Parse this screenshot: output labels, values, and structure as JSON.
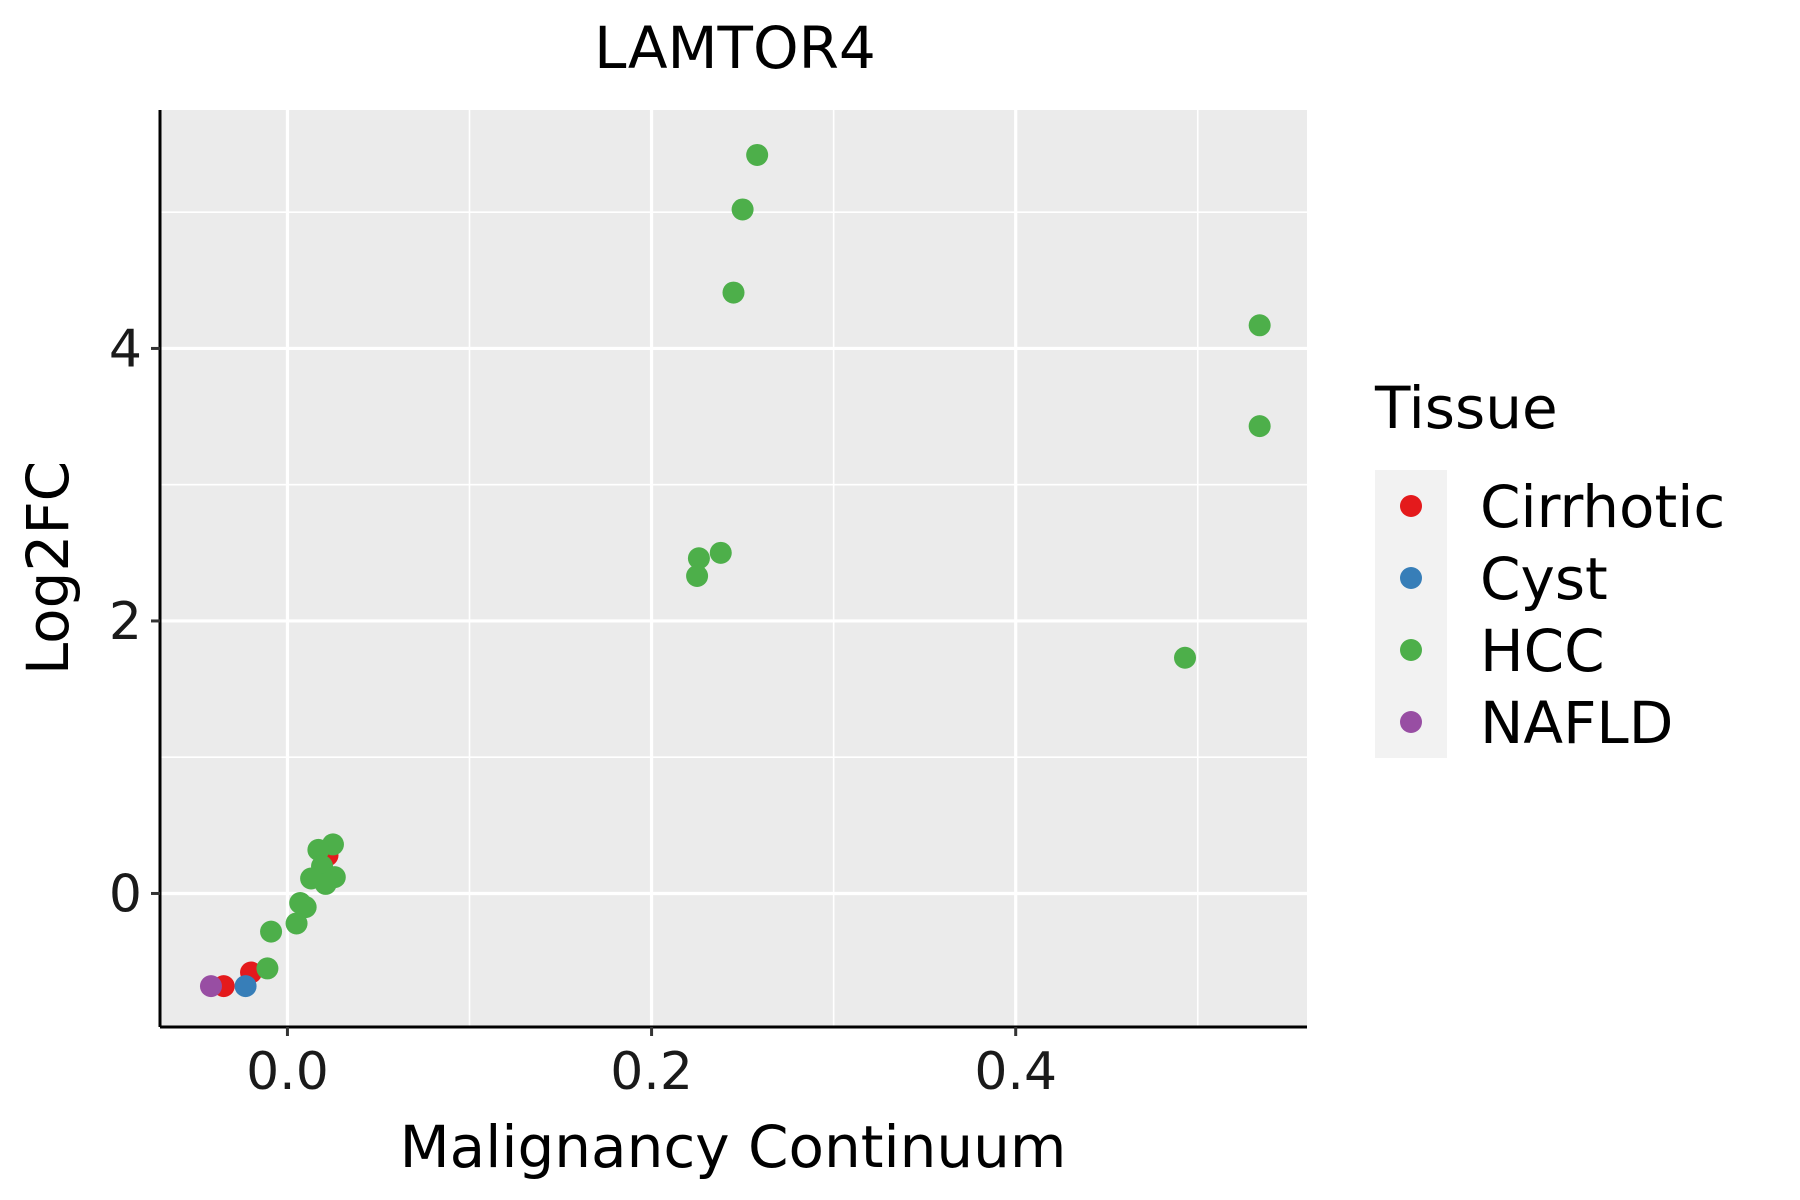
{
  "chart_data": {
    "type": "scatter",
    "title": "LAMTOR4",
    "xlabel": "Malignancy Continuum",
    "ylabel": "Log2FC",
    "xlim": [
      -0.07,
      0.56
    ],
    "ylim": [
      -0.98,
      5.75
    ],
    "x_ticks": [
      0.0,
      0.2,
      0.4
    ],
    "x_tick_labels": [
      "0.0",
      "0.2",
      "0.4"
    ],
    "y_ticks": [
      0,
      2,
      4
    ],
    "y_tick_labels": [
      "0",
      "2",
      "4"
    ],
    "x_minor_grid": [
      -0.1,
      0.1,
      0.3,
      0.5
    ],
    "y_minor_grid": [
      1,
      3,
      5
    ],
    "grid": true,
    "panel_background": "#EBEBEB",
    "legend": {
      "title": "Tissue",
      "position": "right",
      "entries": [
        "Cirrhotic",
        "Cyst",
        "HCC",
        "NAFLD"
      ]
    },
    "series": [
      {
        "name": "Cirrhotic",
        "color": "#E41A1C",
        "points": [
          {
            "x": 0.022,
            "y": 0.28
          },
          {
            "x": -0.02,
            "y": -0.58
          },
          {
            "x": -0.035,
            "y": -0.68
          }
        ]
      },
      {
        "name": "Cyst",
        "color": "#377EB8",
        "points": [
          {
            "x": -0.023,
            "y": -0.68
          }
        ]
      },
      {
        "name": "HCC",
        "color": "#4DAF4A",
        "points": [
          {
            "x": 0.258,
            "y": 5.42
          },
          {
            "x": 0.25,
            "y": 5.02
          },
          {
            "x": 0.245,
            "y": 4.41
          },
          {
            "x": 0.534,
            "y": 4.17
          },
          {
            "x": 0.534,
            "y": 3.43
          },
          {
            "x": 0.238,
            "y": 2.5
          },
          {
            "x": 0.226,
            "y": 2.46
          },
          {
            "x": 0.225,
            "y": 2.33
          },
          {
            "x": 0.493,
            "y": 1.73
          },
          {
            "x": 0.025,
            "y": 0.36
          },
          {
            "x": 0.017,
            "y": 0.32
          },
          {
            "x": 0.019,
            "y": 0.2
          },
          {
            "x": 0.013,
            "y": 0.11
          },
          {
            "x": 0.026,
            "y": 0.12
          },
          {
            "x": 0.021,
            "y": 0.07
          },
          {
            "x": 0.007,
            "y": -0.07
          },
          {
            "x": 0.01,
            "y": -0.1
          },
          {
            "x": 0.005,
            "y": -0.22
          },
          {
            "x": -0.009,
            "y": -0.28
          },
          {
            "x": -0.011,
            "y": -0.55
          }
        ]
      },
      {
        "name": "NAFLD",
        "color": "#984EA3",
        "points": [
          {
            "x": -0.042,
            "y": -0.68
          }
        ]
      }
    ]
  }
}
